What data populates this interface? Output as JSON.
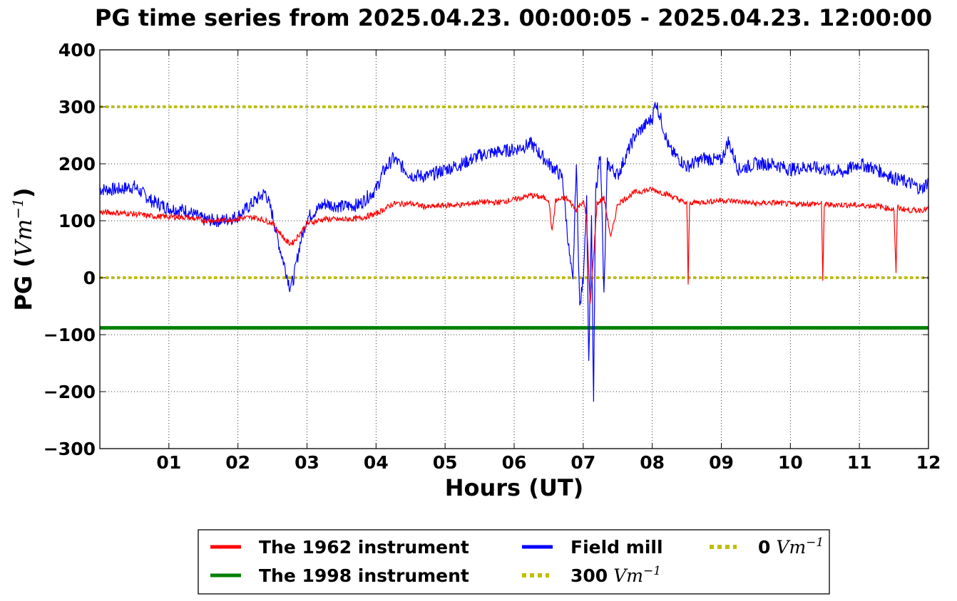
{
  "chart_data": {
    "type": "line",
    "title": "PG time series from 2025.04.23. 00:00:05 - 2025.04.23. 12:00:00",
    "xlabel": "Hours (UT)",
    "ylabel_main": "PG (",
    "ylabel_unit": "Vm",
    "ylabel_exp": "−1",
    "ylabel_close": ")",
    "xlim": [
      0,
      12
    ],
    "ylim": [
      -300,
      400
    ],
    "grid": true,
    "x_ticks": [
      1,
      2,
      3,
      4,
      5,
      6,
      7,
      8,
      9,
      10,
      11,
      12
    ],
    "x_tick_labels": [
      "01",
      "02",
      "03",
      "04",
      "05",
      "06",
      "07",
      "08",
      "09",
      "10",
      "11",
      "12"
    ],
    "y_ticks": [
      400,
      300,
      200,
      100,
      0,
      -100,
      -200,
      -300
    ],
    "y_tick_labels": [
      "400",
      "300",
      "200",
      "100",
      "0",
      "−100",
      "−200",
      "−300"
    ],
    "legend_position": "below",
    "series": [
      {
        "name": "The 1962 instrument",
        "color": "#ff0000",
        "x": [
          0,
          0.25,
          0.5,
          0.75,
          1.0,
          1.25,
          1.5,
          1.75,
          2.0,
          2.25,
          2.5,
          2.6,
          2.7,
          2.75,
          2.8,
          2.9,
          3.0,
          3.25,
          3.5,
          3.75,
          4.0,
          4.25,
          4.5,
          4.75,
          5.0,
          5.25,
          5.5,
          5.75,
          6.0,
          6.25,
          6.5,
          6.55,
          6.6,
          6.75,
          6.9,
          7.0,
          7.05,
          7.1,
          7.15,
          7.2,
          7.3,
          7.4,
          7.5,
          7.75,
          8.0,
          8.25,
          8.5,
          8.52,
          8.54,
          8.56,
          8.75,
          9.0,
          9.25,
          9.5,
          9.75,
          10.0,
          10.25,
          10.45,
          10.47,
          10.49,
          10.75,
          11.0,
          11.25,
          11.5,
          11.53,
          11.55,
          11.57,
          11.75,
          12.0
        ],
        "values": [
          115,
          114,
          112,
          108,
          107,
          106,
          101,
          100,
          104,
          106,
          96,
          80,
          64,
          60,
          62,
          78,
          95,
          103,
          102,
          104,
          112,
          130,
          130,
          124,
          127,
          128,
          133,
          132,
          137,
          145,
          138,
          80,
          135,
          140,
          120,
          135,
          105,
          -50,
          40,
          130,
          140,
          70,
          130,
          150,
          155,
          145,
          130,
          -10,
          130,
          132,
          133,
          136,
          134,
          130,
          132,
          129,
          130,
          130,
          -8,
          128,
          128,
          127,
          126,
          120,
          5,
          125,
          122,
          118,
          120
        ]
      },
      {
        "name": "The 1998 instrument",
        "color": "#008000",
        "x": [
          0,
          12
        ],
        "values": [
          -88,
          -88
        ]
      },
      {
        "name": "Field mill",
        "color": "#0000ff",
        "x": [
          0,
          0.25,
          0.5,
          0.75,
          1.0,
          1.25,
          1.5,
          1.75,
          2.0,
          2.25,
          2.4,
          2.5,
          2.6,
          2.7,
          2.75,
          2.8,
          2.9,
          3.0,
          3.25,
          3.5,
          3.75,
          4.0,
          4.1,
          4.25,
          4.5,
          4.75,
          5.0,
          5.25,
          5.5,
          5.7,
          6.0,
          6.25,
          6.5,
          6.6,
          6.7,
          6.8,
          6.85,
          6.9,
          6.95,
          7.0,
          7.05,
          7.08,
          7.12,
          7.15,
          7.18,
          7.25,
          7.3,
          7.35,
          7.5,
          7.75,
          8.0,
          8.05,
          8.25,
          8.5,
          8.75,
          9.0,
          9.1,
          9.25,
          9.5,
          9.75,
          10.0,
          10.25,
          10.5,
          10.75,
          11.0,
          11.25,
          11.5,
          11.75,
          11.9,
          12.0
        ],
        "values": [
          155,
          155,
          160,
          135,
          122,
          118,
          102,
          100,
          108,
          135,
          150,
          110,
          55,
          10,
          -15,
          -5,
          60,
          105,
          130,
          125,
          128,
          155,
          185,
          210,
          180,
          178,
          190,
          200,
          215,
          220,
          225,
          235,
          200,
          190,
          175,
          40,
          -10,
          200,
          -55,
          0,
          140,
          -150,
          100,
          -220,
          150,
          225,
          -35,
          200,
          180,
          250,
          280,
          310,
          225,
          195,
          210,
          205,
          240,
          190,
          200,
          200,
          190,
          195,
          190,
          185,
          200,
          190,
          175,
          165,
          155,
          170
        ]
      },
      {
        "name": "300",
        "unit": "Vm",
        "exp": "−1",
        "color": "#bfbf00",
        "x": [
          0,
          12
        ],
        "values": [
          300,
          300
        ]
      },
      {
        "name": "0",
        "unit": "Vm",
        "exp": "−1",
        "color": "#bfbf00",
        "x": [
          0,
          12
        ],
        "values": [
          0,
          0
        ]
      }
    ]
  }
}
